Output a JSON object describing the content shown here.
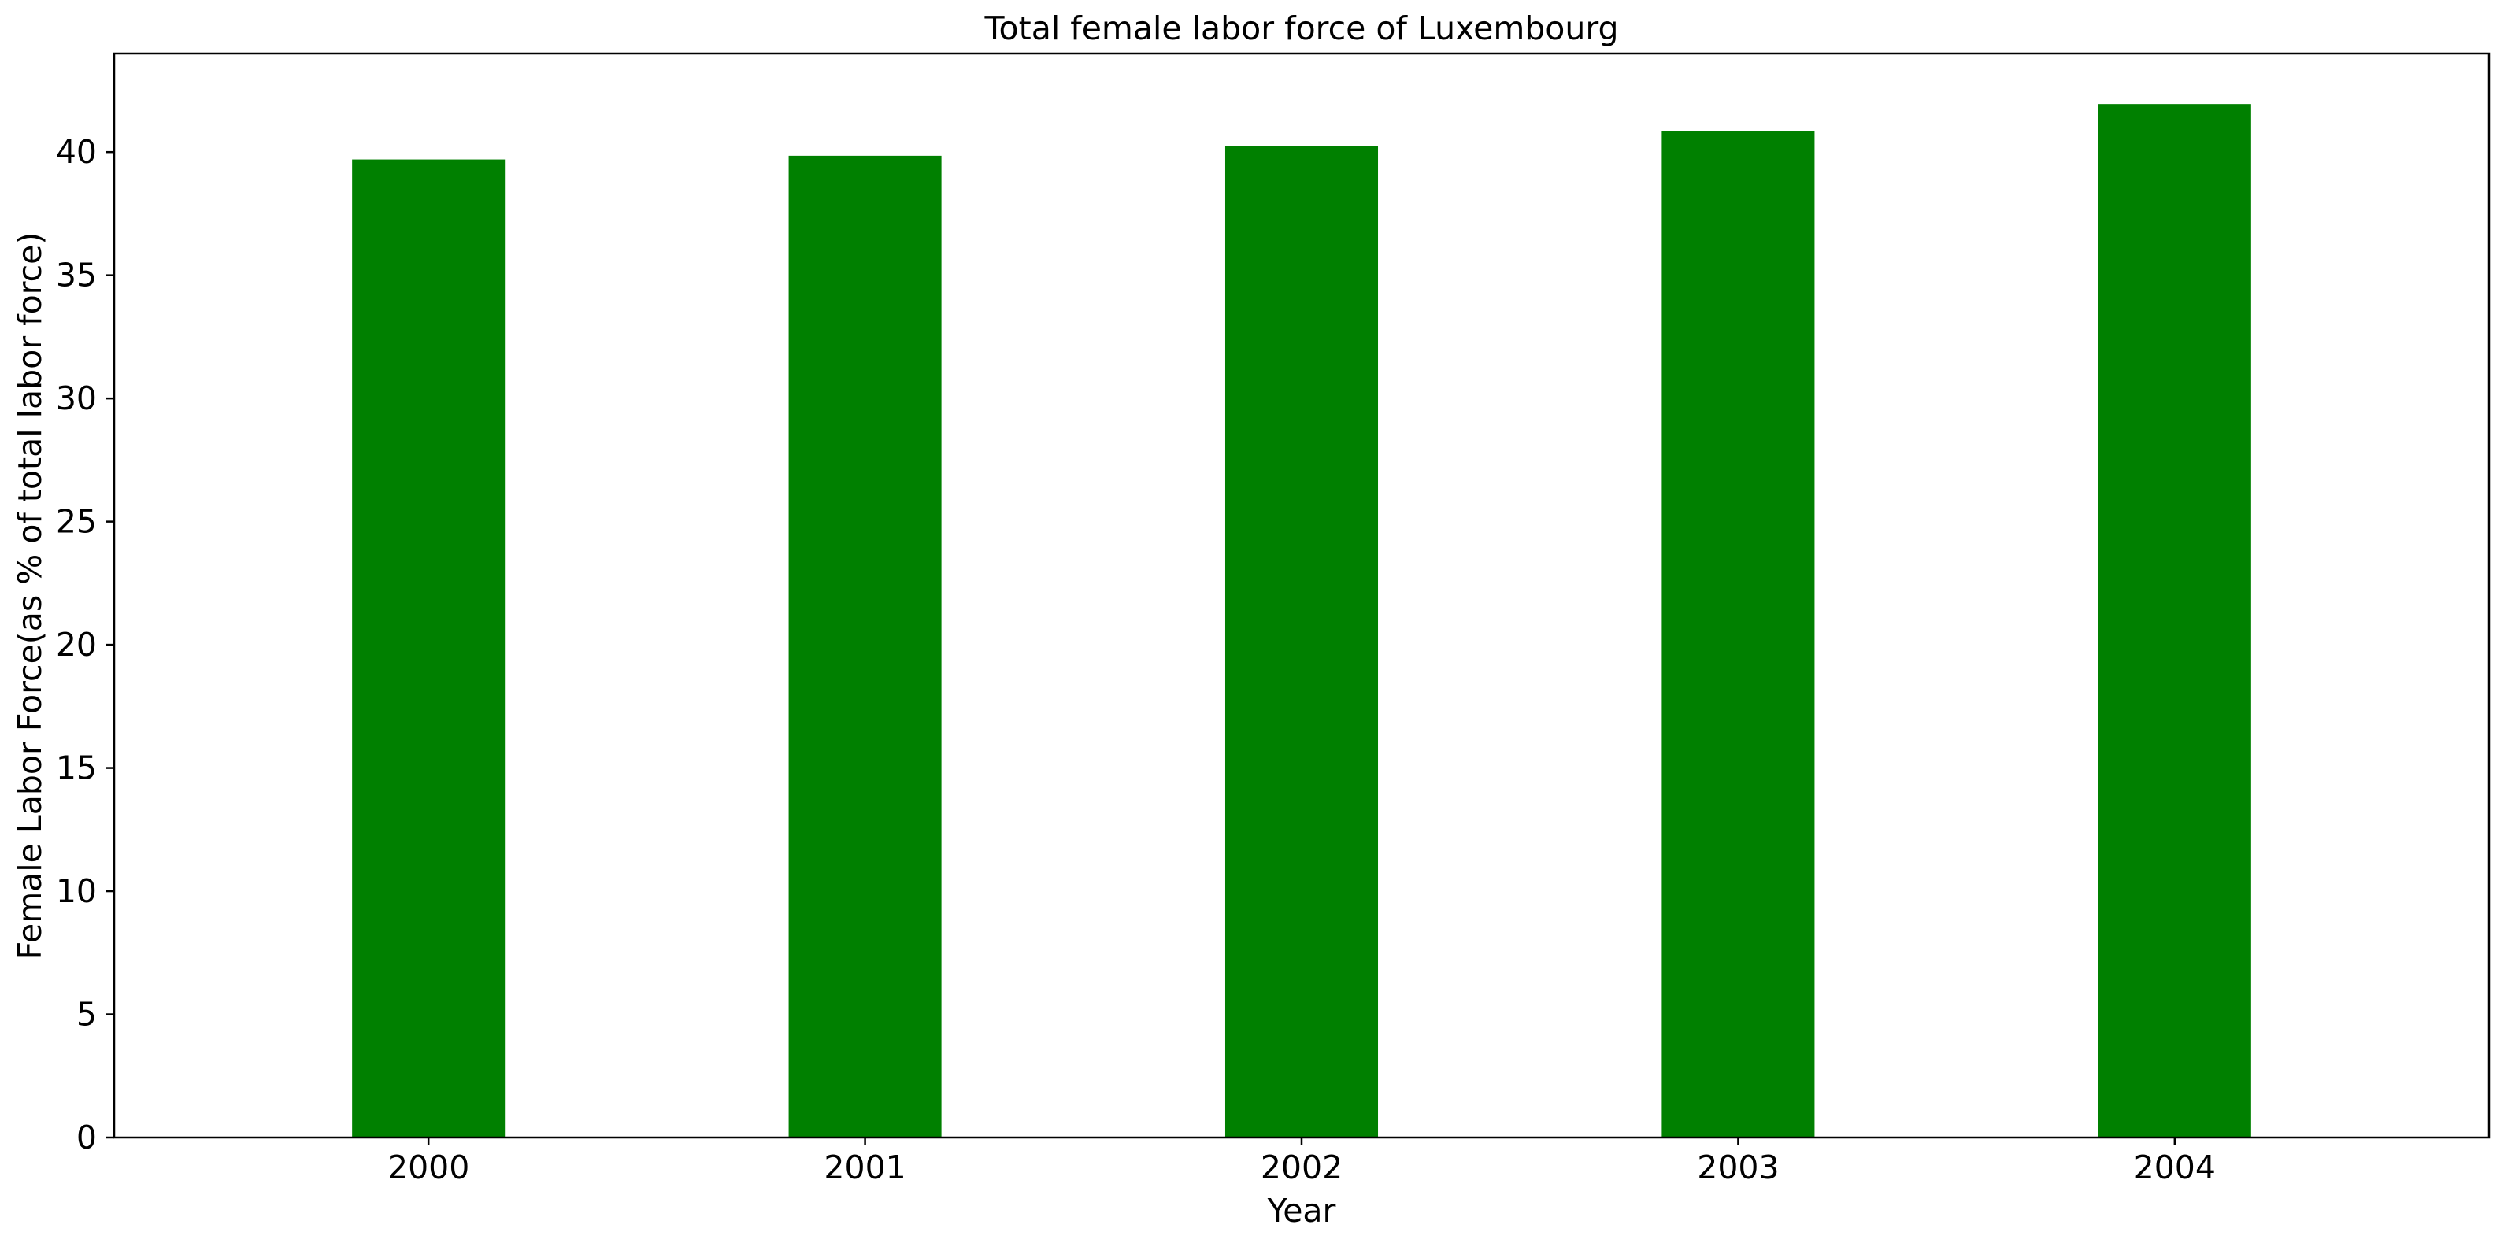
{
  "chart_data": {
    "type": "bar",
    "title": "Total female labor force of Luxembourg",
    "xlabel": "Year",
    "ylabel": "Female Labor Force(as % of total labor force)",
    "categories": [
      "2000",
      "2001",
      "2002",
      "2003",
      "2004"
    ],
    "values": [
      39.7,
      39.85,
      40.25,
      40.85,
      41.95
    ],
    "ylim": [
      0,
      44
    ],
    "yticks": [
      0,
      5,
      10,
      15,
      20,
      25,
      30,
      35,
      40
    ],
    "ytick_labels": [
      "0",
      "5",
      "10",
      "15",
      "20",
      "25",
      "30",
      "35",
      "40"
    ],
    "bar_color": "#008000",
    "grid": false,
    "legend": "none"
  }
}
